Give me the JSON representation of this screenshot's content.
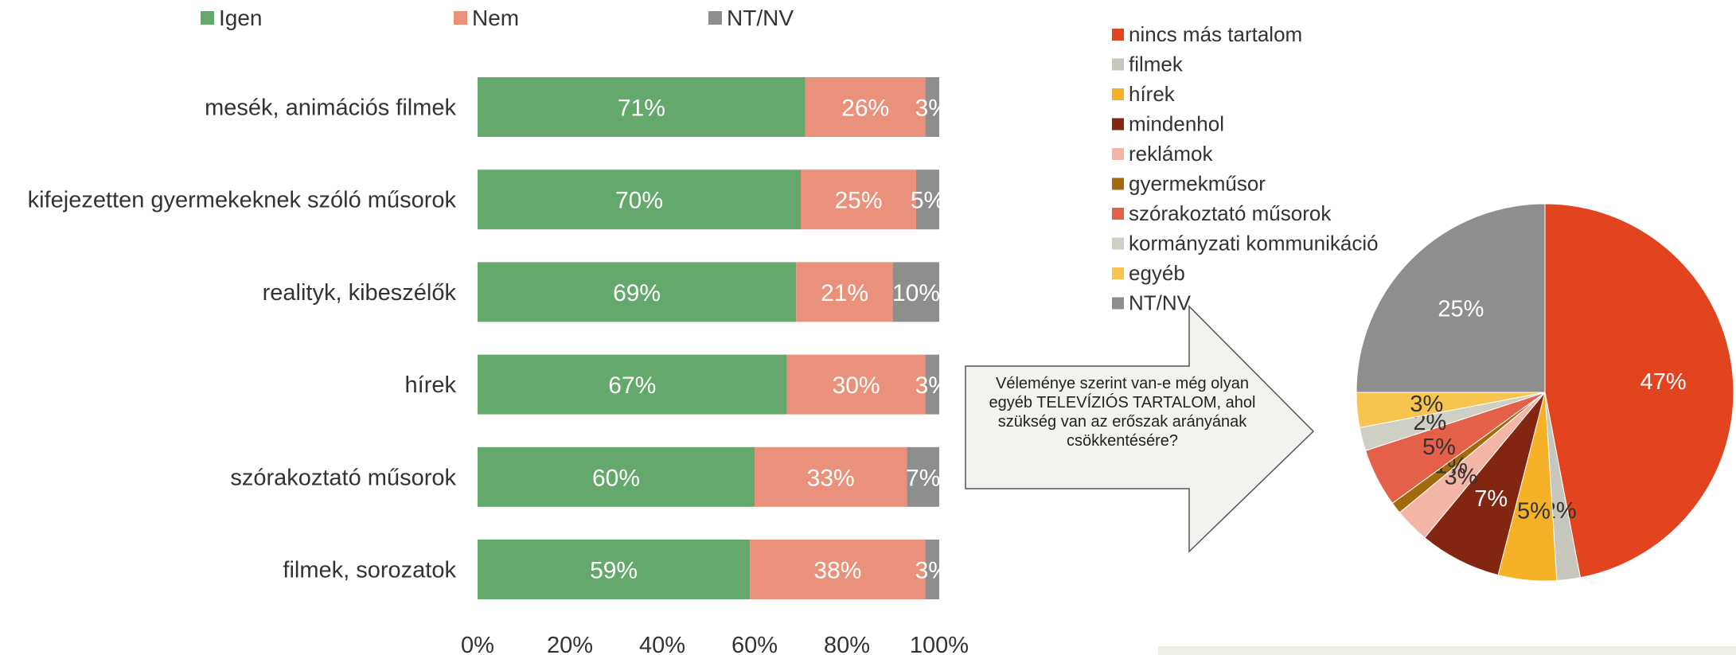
{
  "colors": {
    "igen": "#65a86c",
    "nem": "#ea917b",
    "ntnv": "#8e8e8e",
    "callout_fill": "#f2f2ee",
    "callout_stroke": "#555555"
  },
  "chart_data": [
    {
      "type": "bar",
      "orientation": "horizontal",
      "stacked": "percent",
      "categories": [
        "mesék, animációs filmek",
        "kifejezetten gyermekeknek szóló műsorok",
        "realityk, kibeszélők",
        "hírek",
        "szórakoztató műsorok",
        "filmek, sorozatok"
      ],
      "series": [
        {
          "name": "Igen",
          "values": [
            71,
            70,
            69,
            67,
            60,
            59
          ],
          "labels": [
            "71%",
            "70%",
            "69%",
            "67%",
            "60%",
            "59%"
          ],
          "color": "#65a86c"
        },
        {
          "name": "Nem",
          "values": [
            26,
            25,
            21,
            30,
            33,
            38
          ],
          "labels": [
            "26%",
            "25%",
            "21%",
            "30%",
            "33%",
            "38%"
          ],
          "color": "#ea917b"
        },
        {
          "name": "NT/NV",
          "values": [
            3,
            5,
            10,
            3,
            7,
            3
          ],
          "labels": [
            "3%",
            "5%",
            "10%",
            "3%",
            "7%",
            "3%"
          ],
          "color": "#8e8e8e"
        }
      ],
      "xlim": [
        0,
        100
      ],
      "x_ticks": [
        "0%",
        "20%",
        "40%",
        "60%",
        "80%",
        "100%"
      ],
      "legend_position": "top",
      "grid": false
    },
    {
      "type": "pie",
      "slices": [
        {
          "label": "nincs más tartalom",
          "value": 47,
          "value_label": "47%",
          "color": "#e2441f",
          "text_color": "#ffffff"
        },
        {
          "label": "filmek",
          "value": 2,
          "value_label": "2%",
          "color": "#c7c7bd",
          "text_color": "#333333"
        },
        {
          "label": "hírek",
          "value": 5,
          "value_label": "5%",
          "color": "#f5b228",
          "text_color": "#333333"
        },
        {
          "label": "mindenhol",
          "value": 7,
          "value_label": "7%",
          "color": "#822612",
          "text_color": "#ffffff"
        },
        {
          "label": "reklámok",
          "value": 3,
          "value_label": "3%",
          "color": "#f3b6a6",
          "text_color": "#333333"
        },
        {
          "label": "gyermekműsor",
          "value": 1,
          "value_label": "1%",
          "color": "#a06a0d",
          "text_color": "#333333"
        },
        {
          "label": "szórakoztató műsorok",
          "value": 5,
          "value_label": "5%",
          "color": "#e56048",
          "text_color": "#333333"
        },
        {
          "label": "kormányzati kommunikáció",
          "value": 2,
          "value_label": "2%",
          "color": "#cfcfc6",
          "text_color": "#333333"
        },
        {
          "label": "egyéb",
          "value": 3,
          "value_label": "3%",
          "color": "#f7c54f",
          "text_color": "#333333"
        },
        {
          "label": "NT/NV",
          "value": 25,
          "value_label": "25%",
          "color": "#8e8e8e",
          "text_color": "#ffffff"
        }
      ],
      "start_angle_deg": 0,
      "direction": "clockwise",
      "legend_position": "top-left"
    }
  ],
  "callout": {
    "text": "Véleménye szerint van-e még olyan egyéb TELEVÍZIÓS TARTALOM, ahol  szükség van az erőszak arányának csökkentésére?"
  }
}
